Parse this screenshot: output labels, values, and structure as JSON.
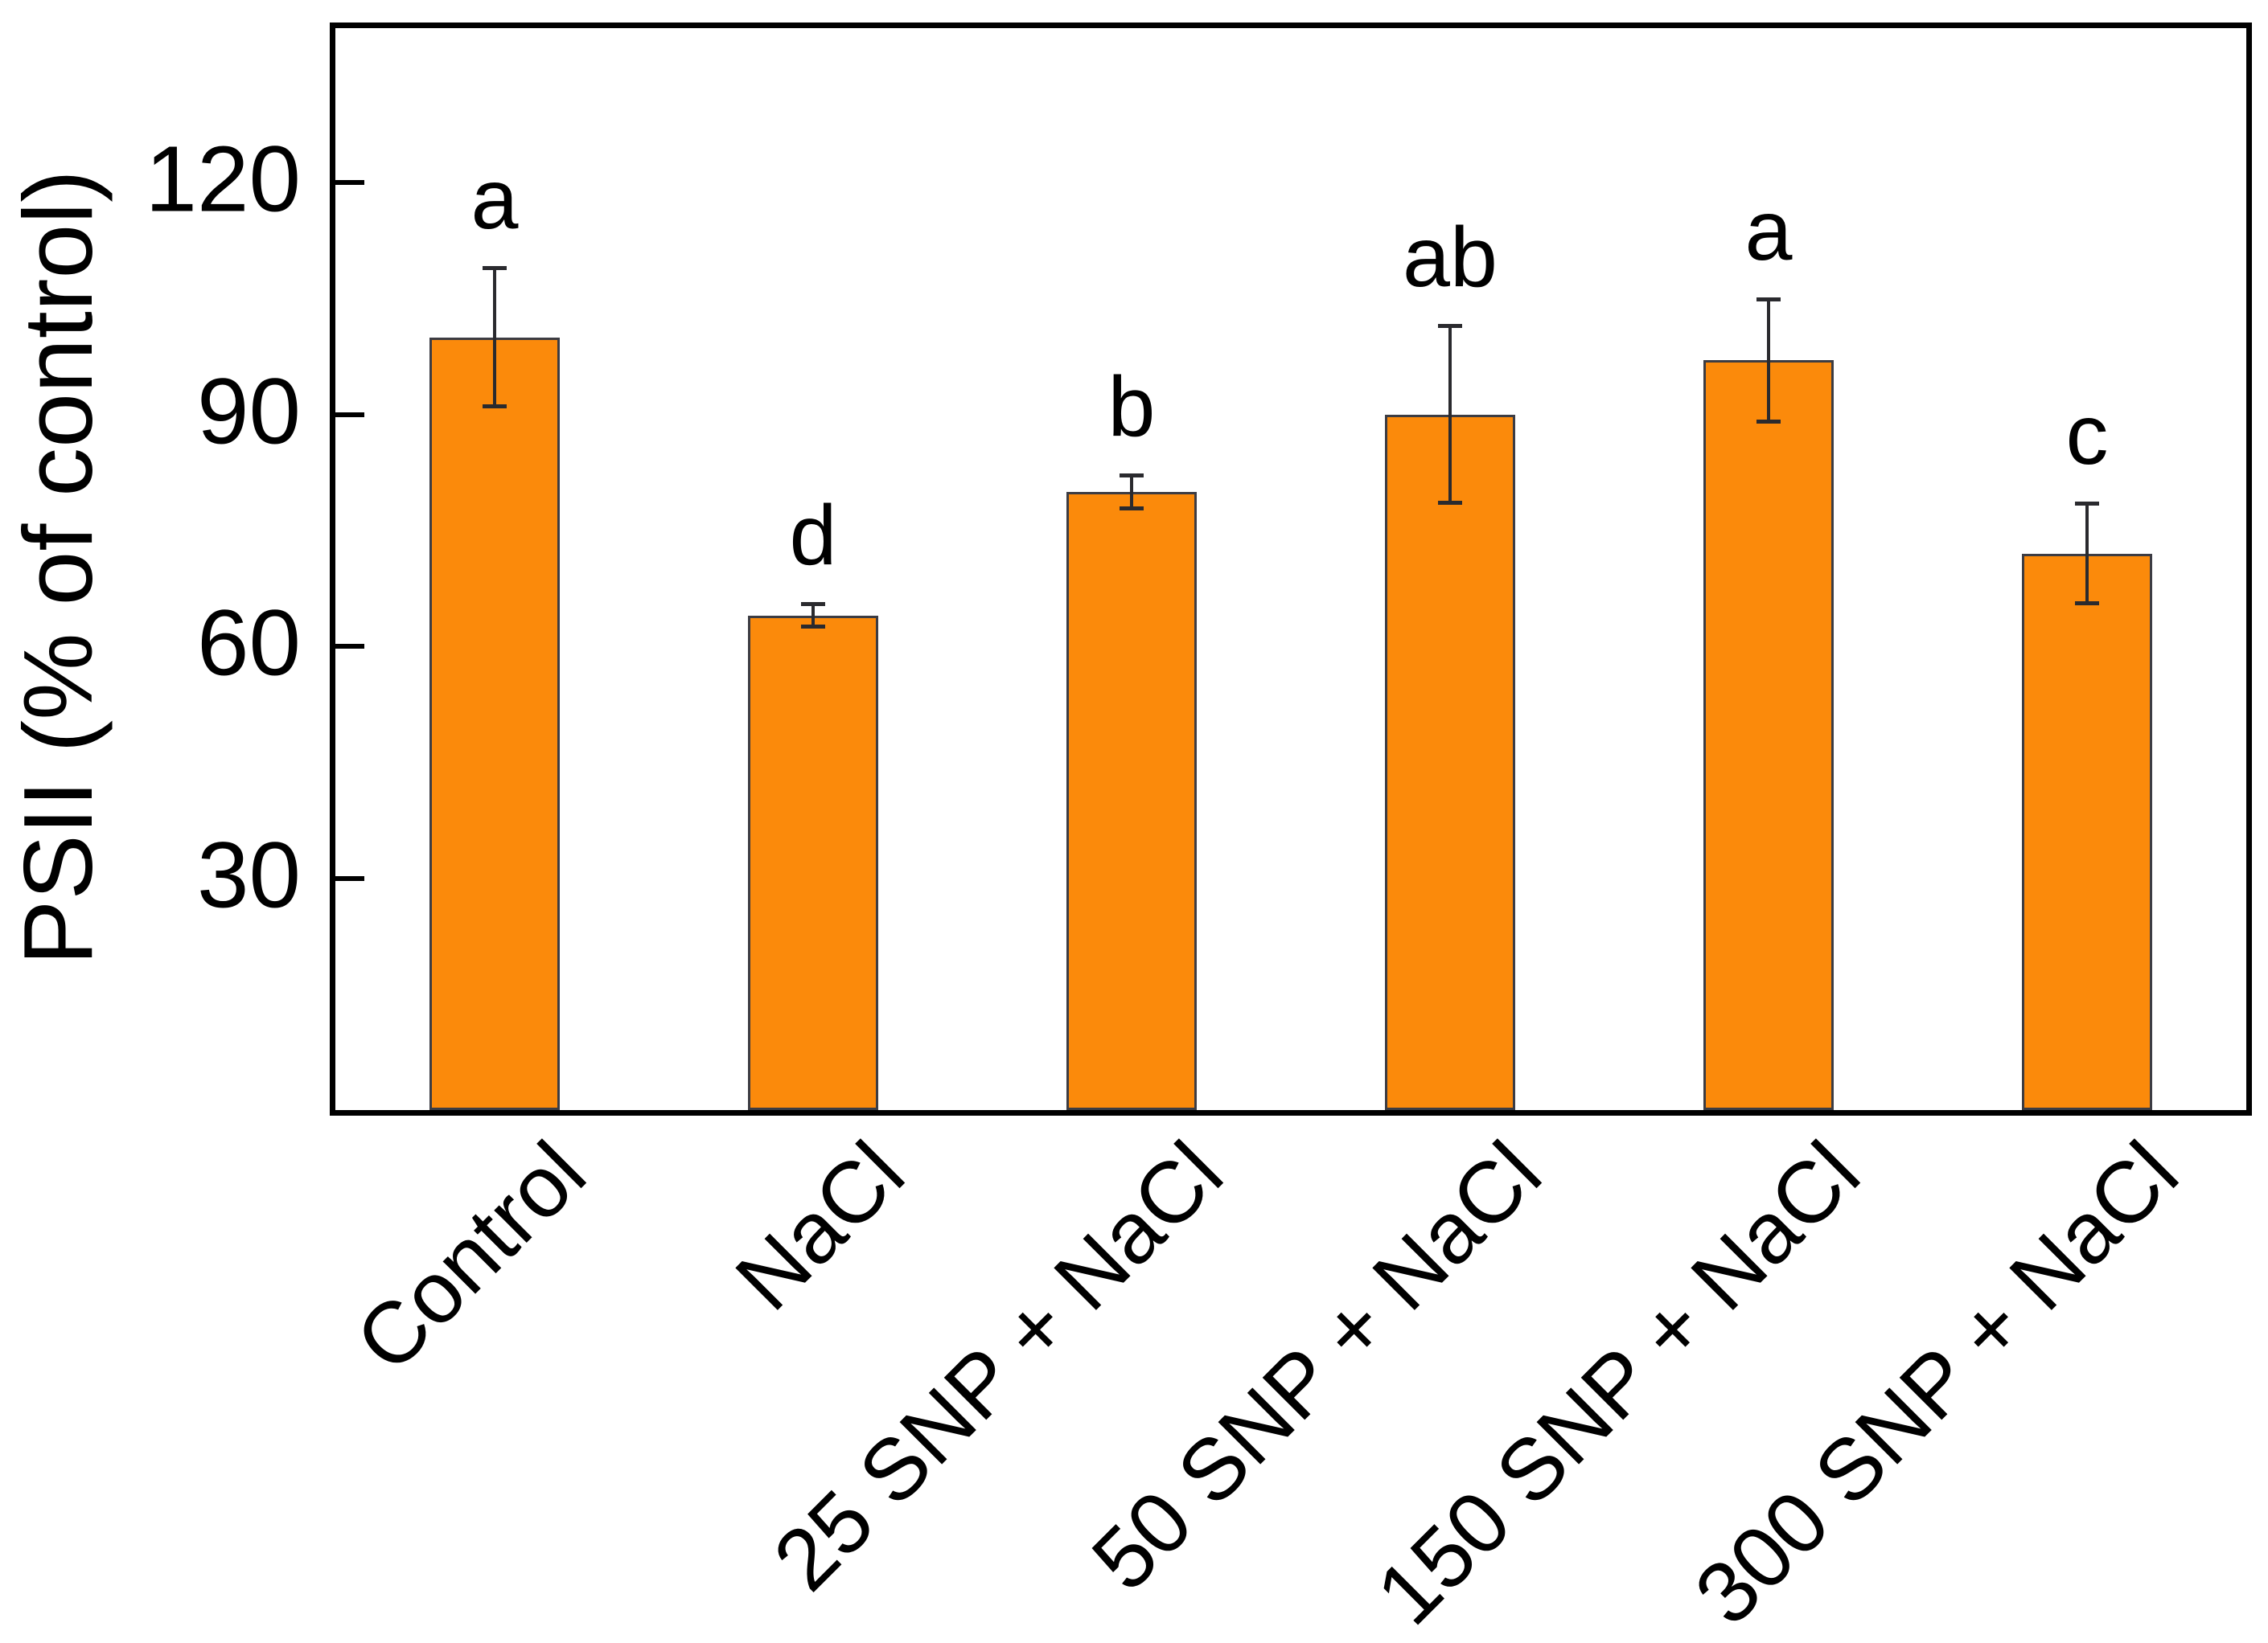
{
  "figure": {
    "title": "",
    "y_axis_label": "PSII (% of control)"
  },
  "chart_data": {
    "type": "bar",
    "title": "",
    "xlabel": "",
    "ylabel": "PSII (% of control)",
    "categories": [
      "Control",
      "NaCl",
      "25 SNP + NaCl",
      "50 SNP + NaCl",
      "150 SNP + NaCl",
      "300 SNP + NaCl"
    ],
    "values": [
      100,
      64,
      80,
      90,
      97,
      72
    ],
    "errors": [
      9,
      1.5,
      2.2,
      11.5,
      8,
      6.5
    ],
    "sig_letters": [
      "a",
      "d",
      "b",
      "ab",
      "a",
      "c"
    ],
    "yticks": [
      30,
      60,
      90,
      120
    ],
    "ylim": [
      0,
      140
    ],
    "grid": false,
    "legend": false,
    "x_label_rotation_deg": 45,
    "bar_color": "#FB8A0B",
    "bar_border_color": "#3C3C43",
    "error_bar_color": "#2A2A2E",
    "axis_color": "#000000",
    "background_color": "#FFFFFF"
  }
}
